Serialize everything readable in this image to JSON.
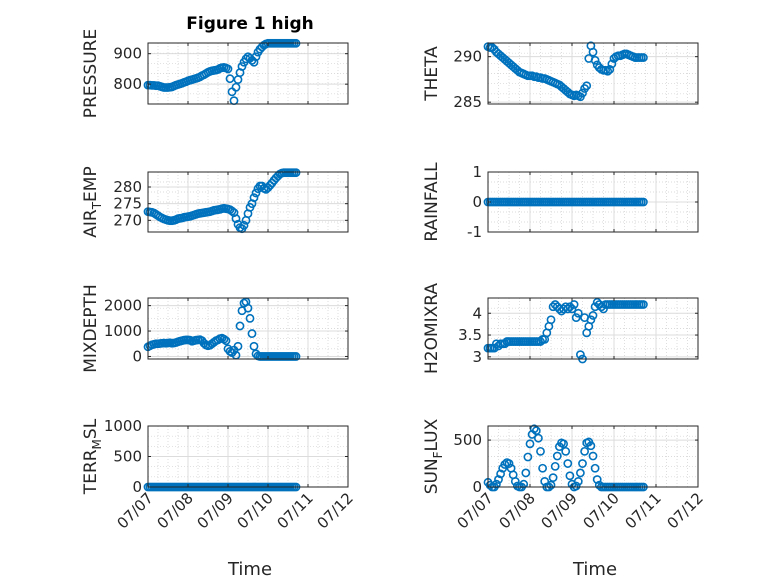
{
  "figure": {
    "title": "Figure 1 high",
    "xlabel": "Time",
    "marker_color": "#0072BD",
    "x_tick_labels": [
      "07/07",
      "07/08",
      "07/09",
      "07/10",
      "07/11",
      "07/12"
    ]
  },
  "chart_data": [
    {
      "type": "scatter",
      "name": "PRESSURE",
      "ylabel_main": "PRESSURE",
      "ylabel_sub": "",
      "ylim": [
        735,
        935
      ],
      "yticks": [
        800,
        900
      ],
      "ytick_labels": [
        "800",
        "900"
      ],
      "x": [
        0,
        0.05,
        0.1,
        0.15,
        0.2,
        0.25,
        0.3,
        0.35,
        0.4,
        0.45,
        0.5,
        0.55,
        0.6,
        0.65,
        0.7,
        0.75,
        0.8,
        0.85,
        0.9,
        0.95,
        1,
        1.05,
        1.1,
        1.15,
        1.2,
        1.25,
        1.3,
        1.35,
        1.4,
        1.45,
        1.5,
        1.55,
        1.6,
        1.65,
        1.7,
        1.75,
        1.8,
        1.85,
        1.9,
        1.95,
        2,
        2.05,
        2.1,
        2.15,
        2.2,
        2.25,
        2.3,
        2.35,
        2.4,
        2.45,
        2.5,
        2.55,
        2.6,
        2.65,
        2.7,
        2.75,
        2.8,
        2.85,
        2.9,
        2.95,
        3,
        3.05,
        3.1,
        3.15,
        3.2,
        3.25,
        3.3,
        3.35,
        3.4,
        3.45,
        3.5,
        3.55,
        3.6,
        3.65,
        3.7
      ],
      "y": [
        797,
        797,
        796,
        796,
        795,
        795,
        793,
        791,
        789,
        789,
        789,
        790,
        791,
        794,
        797,
        799,
        801,
        803,
        806,
        808,
        811,
        813,
        815,
        817,
        819,
        821,
        824,
        828,
        831,
        835,
        839,
        842,
        844,
        845,
        846,
        848,
        852,
        854,
        855,
        853,
        850,
        818,
        775,
        746,
        790,
        815,
        838,
        858,
        872,
        883,
        890,
        885,
        878,
        872,
        890,
        905,
        915,
        922,
        928,
        932,
        934,
        934,
        934,
        934,
        934,
        934,
        934,
        934,
        934,
        934,
        934,
        934,
        934,
        934,
        934
      ]
    },
    {
      "type": "scatter",
      "name": "THETA",
      "ylabel_main": "THETA",
      "ylabel_sub": "",
      "ylim": [
        284.8,
        291.5
      ],
      "yticks": [
        285,
        290
      ],
      "ytick_labels": [
        "285",
        "290"
      ],
      "x": [
        0,
        0.05,
        0.1,
        0.15,
        0.2,
        0.25,
        0.3,
        0.35,
        0.4,
        0.45,
        0.5,
        0.55,
        0.6,
        0.65,
        0.7,
        0.75,
        0.8,
        0.85,
        0.9,
        0.95,
        1,
        1.05,
        1.1,
        1.15,
        1.2,
        1.25,
        1.3,
        1.35,
        1.4,
        1.45,
        1.5,
        1.55,
        1.6,
        1.65,
        1.7,
        1.75,
        1.8,
        1.85,
        1.9,
        1.95,
        2,
        2.05,
        2.1,
        2.15,
        2.2,
        2.25,
        2.3,
        2.35,
        2.4,
        2.45,
        2.5,
        2.55,
        2.6,
        2.65,
        2.7,
        2.75,
        2.8,
        2.85,
        2.9,
        2.95,
        3,
        3.05,
        3.1,
        3.15,
        3.2,
        3.25,
        3.3,
        3.35,
        3.4,
        3.45,
        3.5,
        3.55,
        3.6,
        3.65,
        3.7
      ],
      "y": [
        291.1,
        291,
        291,
        290.8,
        290.5,
        290.3,
        290.1,
        289.9,
        289.7,
        289.5,
        289.3,
        289.1,
        288.9,
        288.7,
        288.5,
        288.3,
        288.2,
        288.1,
        288,
        287.9,
        287.9,
        287.9,
        287.8,
        287.8,
        287.7,
        287.7,
        287.6,
        287.6,
        287.5,
        287.4,
        287.3,
        287.2,
        287.1,
        287,
        286.9,
        286.7,
        286.5,
        286.3,
        286.1,
        285.9,
        285.8,
        285.7,
        285.8,
        285.7,
        285.6,
        286,
        286.5,
        286.8,
        289.8,
        291.2,
        290.5,
        289.6,
        289.1,
        288.8,
        288.6,
        288.5,
        288.5,
        288.4,
        288.6,
        289.2,
        289.8,
        290,
        290.1,
        290.1,
        290.2,
        290.3,
        290.3,
        290.2,
        290.1,
        290,
        289.9,
        289.9,
        289.9,
        289.9,
        289.9
      ]
    },
    {
      "type": "scatter",
      "name": "AIR_TEMP",
      "ylabel_main": "AIR",
      "ylabel_sub": "T",
      "ylabel_tail": "EMP",
      "ylim": [
        266.5,
        284.5
      ],
      "yticks": [
        270,
        275,
        280
      ],
      "ytick_labels": [
        "270",
        "275",
        "280"
      ],
      "x": [
        0,
        0.05,
        0.1,
        0.15,
        0.2,
        0.25,
        0.3,
        0.35,
        0.4,
        0.45,
        0.5,
        0.55,
        0.6,
        0.65,
        0.7,
        0.75,
        0.8,
        0.85,
        0.9,
        0.95,
        1,
        1.05,
        1.1,
        1.15,
        1.2,
        1.25,
        1.3,
        1.35,
        1.4,
        1.45,
        1.5,
        1.55,
        1.6,
        1.65,
        1.7,
        1.75,
        1.8,
        1.85,
        1.9,
        1.95,
        2,
        2.05,
        2.1,
        2.15,
        2.2,
        2.25,
        2.3,
        2.35,
        2.4,
        2.45,
        2.5,
        2.55,
        2.6,
        2.65,
        2.7,
        2.75,
        2.8,
        2.85,
        2.9,
        2.95,
        3,
        3.05,
        3.1,
        3.15,
        3.2,
        3.25,
        3.3,
        3.35,
        3.4,
        3.45,
        3.5,
        3.55,
        3.6,
        3.65,
        3.7
      ],
      "y": [
        272.6,
        272.5,
        272.4,
        272.2,
        271.8,
        271.4,
        271,
        270.7,
        270.4,
        270.2,
        270,
        269.9,
        269.9,
        270,
        270.2,
        270.5,
        270.6,
        270.7,
        270.9,
        271,
        271.1,
        271.2,
        271.4,
        271.6,
        271.8,
        272,
        272.1,
        272.2,
        272.3,
        272.4,
        272.5,
        272.6,
        272.8,
        273,
        273.1,
        273.2,
        273.3,
        273.5,
        273.6,
        273.5,
        273.4,
        273.2,
        272.8,
        272.3,
        270.5,
        268.8,
        267.8,
        267.5,
        268.5,
        270,
        272,
        273.9,
        275,
        276.8,
        278.2,
        279.5,
        280.3,
        280.3,
        279.6,
        279.3,
        279.8,
        280.5,
        281.2,
        282,
        282.7,
        283.3,
        283.9,
        284.2,
        284.3,
        284.3,
        284.3,
        284.3,
        284.3,
        284.3,
        284.3
      ]
    },
    {
      "type": "scatter",
      "name": "RAINFALL",
      "ylabel_main": "RAINFALL",
      "ylabel_sub": "",
      "ylim": [
        -1,
        1
      ],
      "yticks": [
        -1,
        0,
        1
      ],
      "ytick_labels": [
        "-1",
        "0",
        "1"
      ],
      "x": [
        0,
        0.05,
        0.1,
        0.15,
        0.2,
        0.25,
        0.3,
        0.35,
        0.4,
        0.45,
        0.5,
        0.55,
        0.6,
        0.65,
        0.7,
        0.75,
        0.8,
        0.85,
        0.9,
        0.95,
        1,
        1.05,
        1.1,
        1.15,
        1.2,
        1.25,
        1.3,
        1.35,
        1.4,
        1.45,
        1.5,
        1.55,
        1.6,
        1.65,
        1.7,
        1.75,
        1.8,
        1.85,
        1.9,
        1.95,
        2,
        2.05,
        2.1,
        2.15,
        2.2,
        2.25,
        2.3,
        2.35,
        2.4,
        2.45,
        2.5,
        2.55,
        2.6,
        2.65,
        2.7,
        2.75,
        2.8,
        2.85,
        2.9,
        2.95,
        3,
        3.05,
        3.1,
        3.15,
        3.2,
        3.25,
        3.3,
        3.35,
        3.4,
        3.45,
        3.5,
        3.55,
        3.6,
        3.65,
        3.7
      ],
      "y": [
        0,
        0,
        0,
        0,
        0,
        0,
        0,
        0,
        0,
        0,
        0,
        0,
        0,
        0,
        0,
        0,
        0,
        0,
        0,
        0,
        0,
        0,
        0,
        0,
        0,
        0,
        0,
        0,
        0,
        0,
        0,
        0,
        0,
        0,
        0,
        0,
        0,
        0,
        0,
        0,
        0,
        0,
        0,
        0,
        0,
        0,
        0,
        0,
        0,
        0,
        0,
        0,
        0,
        0,
        0,
        0,
        0,
        0,
        0,
        0,
        0,
        0,
        0,
        0,
        0,
        0,
        0,
        0,
        0,
        0,
        0,
        0,
        0,
        0,
        0
      ]
    },
    {
      "type": "scatter",
      "name": "MIXDEPTH",
      "ylabel_main": "MIXDEPTH",
      "ylabel_sub": "",
      "ylim": [
        -100,
        2300
      ],
      "yticks": [
        0,
        1000,
        2000
      ],
      "ytick_labels": [
        "0",
        "1000",
        "2000"
      ],
      "x": [
        0,
        0.05,
        0.1,
        0.15,
        0.2,
        0.25,
        0.3,
        0.35,
        0.4,
        0.45,
        0.5,
        0.55,
        0.6,
        0.65,
        0.7,
        0.75,
        0.8,
        0.85,
        0.9,
        0.95,
        1,
        1.05,
        1.1,
        1.15,
        1.2,
        1.25,
        1.3,
        1.35,
        1.4,
        1.45,
        1.5,
        1.55,
        1.6,
        1.65,
        1.7,
        1.75,
        1.8,
        1.85,
        1.9,
        1.95,
        2,
        2.05,
        2.1,
        2.15,
        2.2,
        2.25,
        2.3,
        2.35,
        2.4,
        2.45,
        2.5,
        2.55,
        2.6,
        2.65,
        2.7,
        2.75,
        2.8,
        2.85,
        2.9,
        2.95,
        3,
        3.05,
        3.1,
        3.15,
        3.2,
        3.25,
        3.3,
        3.35,
        3.4,
        3.45,
        3.5,
        3.55,
        3.6,
        3.65,
        3.7
      ],
      "y": [
        380,
        420,
        460,
        480,
        500,
        500,
        510,
        520,
        530,
        520,
        530,
        540,
        520,
        530,
        550,
        580,
        600,
        620,
        640,
        650,
        650,
        640,
        600,
        620,
        640,
        650,
        660,
        620,
        520,
        450,
        420,
        440,
        500,
        560,
        620,
        650,
        700,
        720,
        680,
        620,
        300,
        200,
        150,
        250,
        50,
        400,
        1200,
        1800,
        2100,
        2150,
        1900,
        1500,
        900,
        400,
        100,
        20,
        0,
        0,
        0,
        0,
        0,
        0,
        0,
        0,
        0,
        0,
        0,
        0,
        0,
        0,
        0,
        0,
        0,
        0,
        0
      ]
    },
    {
      "type": "scatter",
      "name": "H2OMIXRA",
      "ylabel_main": "H2OMIXRA",
      "ylabel_sub": "",
      "ylim": [
        2.95,
        4.35
      ],
      "yticks": [
        3,
        3.5,
        4
      ],
      "ytick_labels": [
        "3",
        "3.5",
        "4"
      ],
      "x": [
        0,
        0.05,
        0.1,
        0.15,
        0.2,
        0.25,
        0.3,
        0.35,
        0.4,
        0.45,
        0.5,
        0.55,
        0.6,
        0.65,
        0.7,
        0.75,
        0.8,
        0.85,
        0.9,
        0.95,
        1,
        1.05,
        1.1,
        1.15,
        1.2,
        1.25,
        1.3,
        1.35,
        1.4,
        1.45,
        1.5,
        1.55,
        1.6,
        1.65,
        1.7,
        1.75,
        1.8,
        1.85,
        1.9,
        1.95,
        2,
        2.05,
        2.1,
        2.15,
        2.2,
        2.25,
        2.3,
        2.35,
        2.4,
        2.45,
        2.5,
        2.55,
        2.6,
        2.65,
        2.7,
        2.75,
        2.8,
        2.85,
        2.9,
        2.95,
        3,
        3.05,
        3.1,
        3.15,
        3.2,
        3.25,
        3.3,
        3.35,
        3.4,
        3.45,
        3.5,
        3.55,
        3.6,
        3.65,
        3.7
      ],
      "y": [
        3.2,
        3.2,
        3.2,
        3.2,
        3.3,
        3.25,
        3.3,
        3.3,
        3.3,
        3.35,
        3.35,
        3.35,
        3.35,
        3.35,
        3.35,
        3.35,
        3.35,
        3.35,
        3.35,
        3.35,
        3.35,
        3.35,
        3.35,
        3.35,
        3.35,
        3.35,
        3.4,
        3.4,
        3.55,
        3.7,
        3.85,
        4.15,
        4.2,
        4.15,
        4.1,
        4.05,
        4.1,
        4.15,
        4.1,
        4.15,
        4.1,
        4.2,
        3.9,
        4.0,
        3.05,
        2.95,
        3.9,
        3.55,
        3.7,
        3.85,
        3.95,
        4.15,
        4.25,
        4.2,
        4.15,
        4.1,
        4.2,
        4.2,
        4.2,
        4.2,
        4.2,
        4.2,
        4.2,
        4.2,
        4.2,
        4.2,
        4.2,
        4.2,
        4.2,
        4.2,
        4.2,
        4.2,
        4.2,
        4.2,
        4.2
      ]
    },
    {
      "type": "scatter",
      "name": "TERR_MSL",
      "ylabel_main": "TERR",
      "ylabel_sub": "M",
      "ylabel_tail": "SL",
      "ylim": [
        0,
        1000
      ],
      "yticks": [
        0,
        500,
        1000
      ],
      "ytick_labels": [
        "0",
        "500",
        "1000"
      ],
      "x": [
        0,
        0.05,
        0.1,
        0.15,
        0.2,
        0.25,
        0.3,
        0.35,
        0.4,
        0.45,
        0.5,
        0.55,
        0.6,
        0.65,
        0.7,
        0.75,
        0.8,
        0.85,
        0.9,
        0.95,
        1,
        1.05,
        1.1,
        1.15,
        1.2,
        1.25,
        1.3,
        1.35,
        1.4,
        1.45,
        1.5,
        1.55,
        1.6,
        1.65,
        1.7,
        1.75,
        1.8,
        1.85,
        1.9,
        1.95,
        2,
        2.05,
        2.1,
        2.15,
        2.2,
        2.25,
        2.3,
        2.35,
        2.4,
        2.45,
        2.5,
        2.55,
        2.6,
        2.65,
        2.7,
        2.75,
        2.8,
        2.85,
        2.9,
        2.95,
        3,
        3.05,
        3.1,
        3.15,
        3.2,
        3.25,
        3.3,
        3.35,
        3.4,
        3.45,
        3.5,
        3.55,
        3.6,
        3.65,
        3.7
      ],
      "y": [
        0,
        0,
        0,
        0,
        0,
        0,
        0,
        0,
        0,
        0,
        0,
        0,
        0,
        0,
        0,
        0,
        0,
        0,
        0,
        0,
        0,
        0,
        0,
        0,
        0,
        0,
        0,
        0,
        0,
        0,
        0,
        0,
        0,
        0,
        0,
        0,
        0,
        0,
        0,
        0,
        0,
        0,
        0,
        0,
        0,
        0,
        0,
        0,
        0,
        0,
        0,
        0,
        0,
        0,
        0,
        0,
        0,
        0,
        0,
        0,
        0,
        0,
        0,
        0,
        0,
        0,
        0,
        0,
        0,
        0,
        0,
        0,
        0,
        0,
        0
      ]
    },
    {
      "type": "scatter",
      "name": "SUN_FLUX",
      "ylabel_main": "SUN",
      "ylabel_sub": "F",
      "ylabel_tail": "LUX",
      "ylim": [
        0,
        650
      ],
      "yticks": [
        0,
        500
      ],
      "ytick_labels": [
        "0",
        "500"
      ],
      "x": [
        0,
        0.05,
        0.1,
        0.15,
        0.2,
        0.25,
        0.3,
        0.35,
        0.4,
        0.45,
        0.5,
        0.55,
        0.6,
        0.65,
        0.7,
        0.75,
        0.8,
        0.85,
        0.9,
        0.95,
        1,
        1.05,
        1.1,
        1.15,
        1.2,
        1.25,
        1.3,
        1.35,
        1.4,
        1.45,
        1.5,
        1.55,
        1.6,
        1.65,
        1.7,
        1.75,
        1.8,
        1.85,
        1.9,
        1.95,
        2,
        2.05,
        2.1,
        2.15,
        2.2,
        2.25,
        2.3,
        2.35,
        2.4,
        2.45,
        2.5,
        2.55,
        2.6,
        2.65,
        2.7,
        2.75,
        2.8,
        2.85,
        2.9,
        2.95,
        3,
        3.05,
        3.1,
        3.15,
        3.2,
        3.25,
        3.3,
        3.35,
        3.4,
        3.45,
        3.5,
        3.55,
        3.6,
        3.65,
        3.7
      ],
      "y": [
        50,
        20,
        0,
        0,
        30,
        80,
        140,
        200,
        240,
        260,
        250,
        200,
        130,
        60,
        10,
        0,
        0,
        30,
        150,
        320,
        460,
        560,
        620,
        600,
        520,
        380,
        200,
        60,
        0,
        0,
        20,
        100,
        220,
        330,
        430,
        470,
        460,
        380,
        250,
        120,
        30,
        0,
        10,
        60,
        150,
        250,
        380,
        470,
        480,
        440,
        330,
        200,
        80,
        20,
        0,
        0,
        0,
        0,
        0,
        0,
        0,
        0,
        0,
        0,
        0,
        0,
        0,
        0,
        0,
        0,
        0,
        0,
        0,
        0,
        0
      ]
    }
  ]
}
